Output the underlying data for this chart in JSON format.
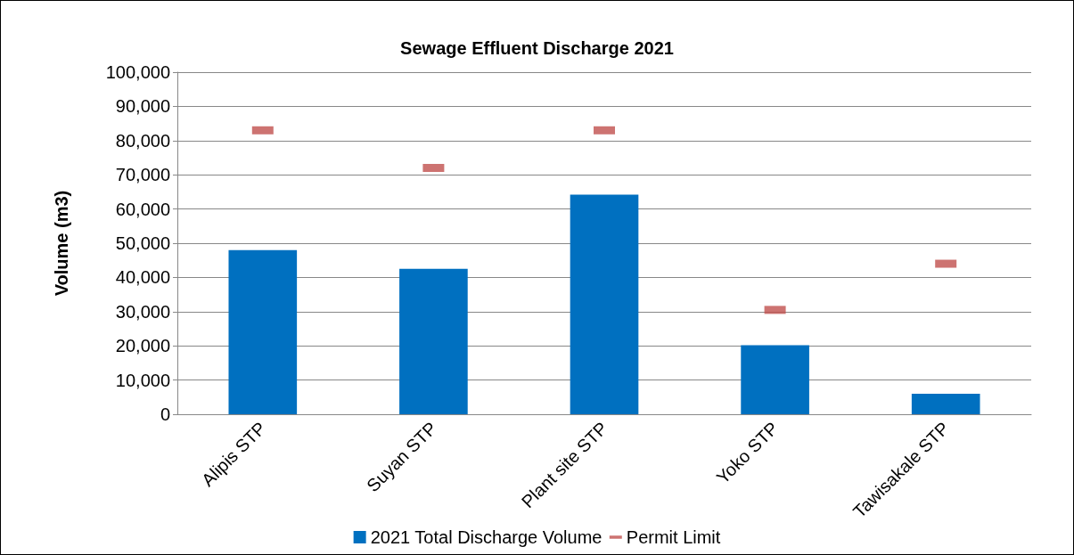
{
  "chart_data": {
    "type": "bar",
    "title": "Sewage Effluent Discharge 2021",
    "ylabel": "Volume (m3)",
    "categories": [
      "Alipis STP",
      "Suyan STP",
      "Plant site STP",
      "Yoko STP",
      "Tawisakale STP"
    ],
    "series": [
      {
        "name": "2021 Total Discharge Volume",
        "type": "bar",
        "color": "#0070c0",
        "values": [
          48000,
          42500,
          64200,
          20200,
          6000
        ]
      },
      {
        "name": "Permit Limit",
        "type": "scatter",
        "color": "#c0504d",
        "x": [
          "Alipis STP",
          "Suyan STP",
          "Plant site STP",
          "Yoko STP",
          "Tawisakale STP"
        ],
        "values": [
          83000,
          72000,
          83000,
          30500,
          44000
        ]
      }
    ],
    "ylim": [
      0,
      100000
    ],
    "yticks": [
      0,
      {
        "value": 10000,
        "label": "10,000"
      },
      {
        "value": 20000,
        "label": "20,000"
      },
      {
        "value": 30000,
        "label": "30,000"
      },
      {
        "value": 40000,
        "label": "40,000"
      },
      {
        "value": 50000,
        "label": "50,000"
      },
      {
        "value": 60000,
        "label": "60,000"
      },
      {
        "value": 70000,
        "label": "70,000"
      },
      {
        "value": 80000,
        "label": "80,000"
      },
      {
        "value": 90000,
        "label": "90,000"
      },
      {
        "value": 100000,
        "label": "100,000"
      }
    ],
    "grid": "y",
    "legend": "bottom"
  }
}
